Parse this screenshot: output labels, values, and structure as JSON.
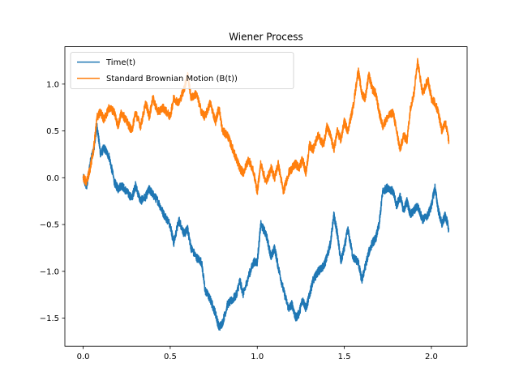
{
  "chart_data": {
    "type": "line",
    "title": "Wiener Process",
    "xlabel": "",
    "ylabel": "",
    "xlim": [
      -0.105,
      2.205
    ],
    "ylim": [
      -1.8,
      1.4
    ],
    "x_ticks": [
      0.0,
      0.5,
      1.0,
      1.5,
      2.0
    ],
    "x_tick_labels": [
      "0.0",
      "0.5",
      "1.0",
      "1.5",
      "2.0"
    ],
    "y_ticks": [
      -1.5,
      -1.0,
      -0.5,
      0.0,
      0.5,
      1.0
    ],
    "y_tick_labels": [
      "−1.5",
      "−1.0",
      "−0.5",
      "0.0",
      "0.5",
      "1.0"
    ],
    "grid": false,
    "legend_position": "top-left",
    "series": [
      {
        "name": "Time(t)",
        "color": "#1f77b4",
        "x": [
          0.0,
          0.02,
          0.04,
          0.06,
          0.08,
          0.1,
          0.12,
          0.15,
          0.18,
          0.2,
          0.22,
          0.25,
          0.28,
          0.3,
          0.33,
          0.36,
          0.38,
          0.4,
          0.43,
          0.46,
          0.5,
          0.52,
          0.55,
          0.58,
          0.6,
          0.62,
          0.65,
          0.68,
          0.7,
          0.73,
          0.76,
          0.78,
          0.8,
          0.83,
          0.86,
          0.88,
          0.9,
          0.92,
          0.95,
          0.98,
          1.0,
          1.02,
          1.05,
          1.08,
          1.1,
          1.12,
          1.15,
          1.18,
          1.2,
          1.22,
          1.24,
          1.26,
          1.28,
          1.3,
          1.32,
          1.35,
          1.38,
          1.4,
          1.42,
          1.44,
          1.46,
          1.48,
          1.5,
          1.52,
          1.55,
          1.58,
          1.6,
          1.62,
          1.64,
          1.66,
          1.68,
          1.7,
          1.72,
          1.75,
          1.78,
          1.8,
          1.82,
          1.84,
          1.86,
          1.88,
          1.9,
          1.92,
          1.95,
          1.98,
          2.0,
          2.02,
          2.04,
          2.06,
          2.08,
          2.1
        ],
        "y": [
          0.0,
          -0.1,
          0.15,
          0.3,
          0.55,
          0.25,
          0.32,
          0.22,
          -0.05,
          -0.12,
          -0.08,
          -0.15,
          -0.22,
          -0.08,
          -0.25,
          -0.2,
          -0.12,
          -0.18,
          -0.25,
          -0.38,
          -0.5,
          -0.7,
          -0.45,
          -0.6,
          -0.55,
          -0.75,
          -0.85,
          -0.9,
          -1.2,
          -1.3,
          -1.45,
          -1.6,
          -1.55,
          -1.35,
          -1.3,
          -1.25,
          -1.1,
          -1.25,
          -1.05,
          -0.9,
          -0.9,
          -0.5,
          -0.6,
          -0.85,
          -0.75,
          -0.95,
          -1.2,
          -1.4,
          -1.35,
          -1.5,
          -1.45,
          -1.3,
          -1.4,
          -1.25,
          -1.1,
          -1.0,
          -0.95,
          -0.85,
          -0.7,
          -0.4,
          -0.6,
          -0.9,
          -0.75,
          -0.55,
          -0.85,
          -0.9,
          -1.1,
          -0.95,
          -0.8,
          -0.7,
          -0.65,
          -0.5,
          -0.15,
          -0.1,
          -0.15,
          -0.3,
          -0.2,
          -0.35,
          -0.25,
          -0.4,
          -0.35,
          -0.3,
          -0.45,
          -0.4,
          -0.3,
          -0.1,
          -0.35,
          -0.5,
          -0.4,
          -0.55
        ]
      },
      {
        "name": "Standard Brownian Motion (B(t))",
        "color": "#ff7f0e",
        "x": [
          0.0,
          0.02,
          0.04,
          0.06,
          0.08,
          0.1,
          0.12,
          0.15,
          0.18,
          0.2,
          0.22,
          0.25,
          0.28,
          0.3,
          0.33,
          0.36,
          0.38,
          0.4,
          0.43,
          0.46,
          0.5,
          0.52,
          0.55,
          0.58,
          0.6,
          0.62,
          0.65,
          0.68,
          0.7,
          0.73,
          0.76,
          0.78,
          0.8,
          0.83,
          0.86,
          0.88,
          0.9,
          0.92,
          0.95,
          0.98,
          1.0,
          1.02,
          1.05,
          1.08,
          1.1,
          1.12,
          1.15,
          1.18,
          1.2,
          1.22,
          1.24,
          1.26,
          1.28,
          1.3,
          1.32,
          1.35,
          1.38,
          1.4,
          1.42,
          1.44,
          1.46,
          1.48,
          1.5,
          1.52,
          1.55,
          1.58,
          1.6,
          1.62,
          1.64,
          1.66,
          1.68,
          1.7,
          1.72,
          1.75,
          1.78,
          1.8,
          1.82,
          1.84,
          1.86,
          1.88,
          1.9,
          1.92,
          1.95,
          1.98,
          2.0,
          2.02,
          2.04,
          2.06,
          2.08,
          2.1
        ],
        "y": [
          0.0,
          -0.05,
          0.1,
          0.3,
          0.65,
          0.7,
          0.62,
          0.75,
          0.7,
          0.55,
          0.7,
          0.6,
          0.5,
          0.7,
          0.55,
          0.8,
          0.65,
          0.85,
          0.7,
          0.75,
          0.65,
          0.85,
          0.8,
          0.95,
          1.1,
          0.85,
          0.9,
          0.7,
          0.65,
          0.8,
          0.6,
          0.75,
          0.5,
          0.45,
          0.3,
          0.2,
          0.1,
          0.05,
          0.2,
          0.05,
          -0.15,
          0.15,
          -0.05,
          0.1,
          0.0,
          0.15,
          -0.15,
          0.05,
          0.1,
          0.15,
          0.1,
          0.2,
          0.05,
          0.35,
          0.3,
          0.45,
          0.35,
          0.55,
          0.45,
          0.3,
          0.5,
          0.4,
          0.6,
          0.5,
          0.75,
          1.15,
          0.9,
          0.85,
          1.1,
          0.95,
          0.9,
          0.7,
          0.55,
          0.65,
          0.7,
          0.5,
          0.3,
          0.45,
          0.4,
          0.75,
          0.9,
          1.25,
          0.9,
          1.05,
          0.85,
          0.8,
          0.7,
          0.5,
          0.6,
          0.4
        ]
      }
    ]
  }
}
